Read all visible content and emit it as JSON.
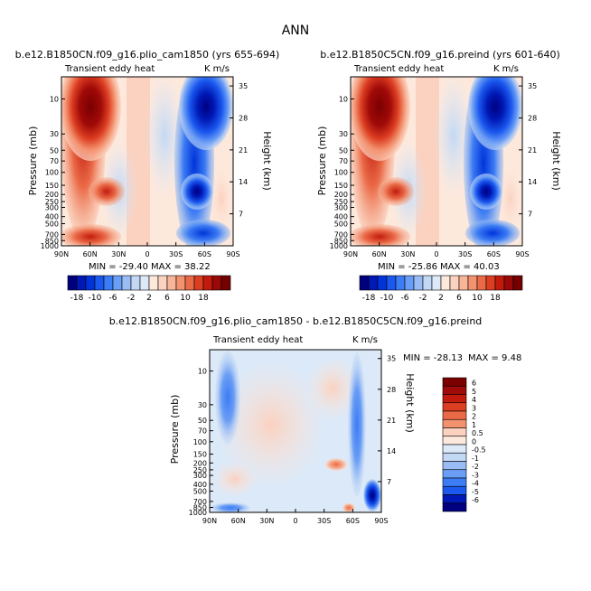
{
  "figure_title": "ANN",
  "colors": {
    "diverging_scale": [
      "#00007f",
      "#0018b5",
      "#0034d9",
      "#1a58ee",
      "#3c7cf4",
      "#6a9df5",
      "#98bcf3",
      "#c2d8f4",
      "#dce9f8",
      "#fde8dc",
      "#fbd1bf",
      "#f8b598",
      "#f3926f",
      "#ea6a47",
      "#dc3e22",
      "#c21b0e",
      "#9a0808",
      "#750000"
    ]
  },
  "chart_data": [
    {
      "type": "heatmap",
      "panel": "top-left",
      "title": "b.e12.B1850CN.f09_g16.plio_cam1850 (yrs 655-694)",
      "field_label": "Transient eddy heat",
      "units": "K m/s",
      "ylabel": "Pressure (mb)",
      "ylabel_right": "Height (km)",
      "x_ticks": [
        "90N",
        "60N",
        "30N",
        "0",
        "30S",
        "60S",
        "90S"
      ],
      "y_ticks": [
        "10",
        "30",
        "50",
        "70",
        "100",
        "150",
        "200",
        "250",
        "300",
        "400",
        "500",
        "700",
        "850",
        "1000"
      ],
      "height_ticks": [
        "35",
        "28",
        "21",
        "14",
        "7"
      ],
      "min_label": "MIN = -29.40",
      "max_label": "MAX = 38.22",
      "min": -29.4,
      "max": 38.22,
      "colorbar_labels": [
        "-18",
        "-10",
        "-6",
        "-2",
        "2",
        "6",
        "10",
        "18"
      ],
      "colorbar_orientation": "horizontal"
    },
    {
      "type": "heatmap",
      "panel": "top-right",
      "title": "b.e12.B1850C5CN.f09_g16.preind (yrs 601-640)",
      "field_label": "Transient eddy heat",
      "units": "K m/s",
      "ylabel": "Pressure (mb)",
      "ylabel_right": "Height (km)",
      "x_ticks": [
        "90N",
        "60N",
        "30N",
        "0",
        "30S",
        "60S",
        "90S"
      ],
      "y_ticks": [
        "10",
        "30",
        "50",
        "70",
        "100",
        "150",
        "200",
        "250",
        "300",
        "400",
        "500",
        "700",
        "850",
        "1000"
      ],
      "height_ticks": [
        "35",
        "28",
        "21",
        "14",
        "7"
      ],
      "min_label": "MIN = -25.86",
      "max_label": "MAX = 40.03",
      "min": -25.86,
      "max": 40.03,
      "colorbar_labels": [
        "-18",
        "-10",
        "-6",
        "-2",
        "2",
        "6",
        "10",
        "18"
      ],
      "colorbar_orientation": "horizontal"
    },
    {
      "type": "heatmap",
      "panel": "bottom-difference",
      "title": "b.e12.B1850CN.f09_g16.plio_cam1850 - b.e12.B1850C5CN.f09_g16.preind",
      "field_label": "Transient eddy heat",
      "units": "K m/s",
      "ylabel": "Pressure (mb)",
      "ylabel_right": "Height (km)",
      "x_ticks": [
        "90N",
        "60N",
        "30N",
        "0",
        "30S",
        "60S",
        "90S"
      ],
      "y_ticks": [
        "10",
        "30",
        "50",
        "70",
        "100",
        "150",
        "200",
        "250",
        "300",
        "400",
        "500",
        "700",
        "850",
        "1000"
      ],
      "height_ticks": [
        "35",
        "28",
        "21",
        "14",
        "7"
      ],
      "min_label": "MIN = -28.13",
      "max_label": "MAX =   9.48",
      "min": -28.13,
      "max": 9.48,
      "colorbar_labels": [
        "6",
        "5",
        "4",
        "3",
        "2",
        "1",
        "0.5",
        "0",
        "-0.5",
        "-1",
        "-2",
        "-3",
        "-4",
        "-5",
        "-6"
      ],
      "colorbar_orientation": "vertical"
    }
  ]
}
